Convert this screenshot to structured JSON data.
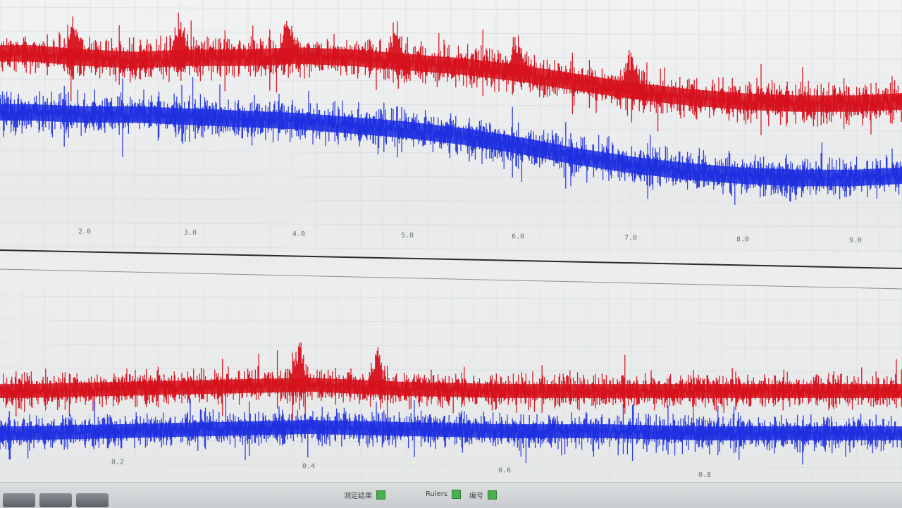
{
  "colors": {
    "red_series": "#d6101c",
    "blue_series": "#1c2ee0",
    "divider": "#2a2a2a"
  },
  "chart_data": [
    {
      "type": "line",
      "title": "",
      "xlabel": "",
      "ylabel": "",
      "xlim": [
        1.5,
        9.4
      ],
      "x_ticks": [
        "2.0",
        "3.0",
        "4.0",
        "5.0",
        "6.0",
        "7.0",
        "8.0",
        "9.0"
      ],
      "grid": true,
      "series": [
        {
          "color": "#d6101c",
          "x": [
            1.5,
            2.0,
            2.5,
            3.0,
            3.5,
            4.0,
            4.5,
            5.0,
            5.5,
            6.0,
            6.5,
            7.0,
            7.5,
            8.0,
            8.5,
            9.0,
            9.4
          ],
          "values": [
            0.82,
            0.8,
            0.79,
            0.8,
            0.8,
            0.81,
            0.8,
            0.78,
            0.76,
            0.73,
            0.69,
            0.65,
            0.62,
            0.6,
            0.59,
            0.59,
            0.6
          ],
          "peaks": [
            1.9,
            2.9,
            3.9,
            4.9,
            6.0,
            7.0
          ]
        },
        {
          "color": "#1c2ee0",
          "x": [
            1.5,
            2.0,
            2.5,
            3.0,
            3.5,
            4.0,
            4.5,
            5.0,
            5.5,
            6.0,
            6.5,
            7.0,
            7.5,
            8.0,
            8.5,
            9.0,
            9.4
          ],
          "values": [
            0.55,
            0.54,
            0.54,
            0.53,
            0.52,
            0.51,
            0.49,
            0.47,
            0.44,
            0.4,
            0.35,
            0.31,
            0.28,
            0.26,
            0.25,
            0.25,
            0.26
          ]
        }
      ]
    },
    {
      "type": "line",
      "title": "",
      "xlabel": "",
      "ylabel": "",
      "xlim": [
        0.1,
        0.9
      ],
      "x_ticks": [
        "0.2",
        "0.4",
        "0.6",
        "0.8"
      ],
      "grid": true,
      "series": [
        {
          "color": "#d6101c",
          "x": [
            0.1,
            0.2,
            0.3,
            0.4,
            0.5,
            0.6,
            0.7,
            0.8,
            0.9
          ],
          "values": [
            0.55,
            0.56,
            0.57,
            0.58,
            0.56,
            0.55,
            0.55,
            0.55,
            0.55
          ],
          "peaks": [
            0.39,
            0.47
          ]
        },
        {
          "color": "#1c2ee0",
          "x": [
            0.1,
            0.2,
            0.3,
            0.4,
            0.5,
            0.6,
            0.7,
            0.8,
            0.9
          ],
          "values": [
            0.35,
            0.36,
            0.37,
            0.38,
            0.37,
            0.36,
            0.36,
            0.35,
            0.35
          ]
        }
      ]
    }
  ],
  "statusbar": {
    "item1_label": "测定结果",
    "item2_label": "Rulers",
    "item3_label": "编号"
  }
}
